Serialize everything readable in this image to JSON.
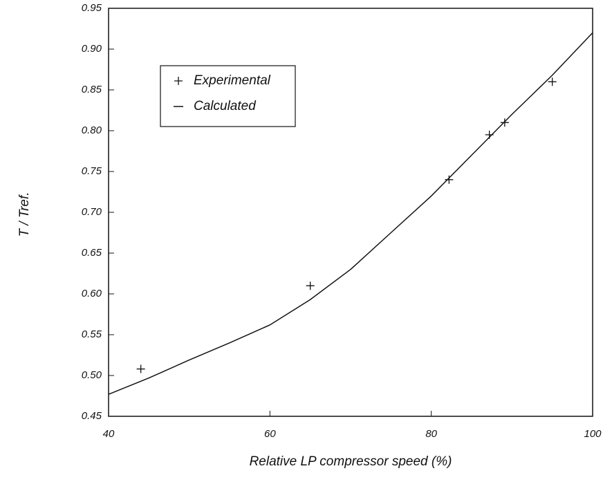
{
  "chart_data": {
    "type": "line",
    "xlabel": "Relative LP compressor speed (%)",
    "ylabel": "T / Tref.",
    "xlim": [
      40,
      100
    ],
    "xticks": [
      40,
      60,
      80,
      100
    ],
    "ylim": [
      0.45,
      0.95
    ],
    "yticks": [
      0.45,
      {
        "value": 0.5,
        "label": "0.50"
      },
      0.55,
      {
        "value": 0.6,
        "label": "0.60"
      },
      0.65,
      {
        "value": 0.7,
        "label": "0.70"
      },
      0.75,
      {
        "value": 0.8,
        "label": "0.80"
      },
      0.85,
      {
        "value": 0.9,
        "label": "0.90"
      },
      0.95
    ],
    "grid": false,
    "legend": "upper left",
    "series": [
      {
        "name": "Experimental",
        "type": "scatter",
        "marker": "+",
        "color": "#111111",
        "x": [
          44,
          65,
          82.2,
          87.2,
          89.1,
          95
        ],
        "values": [
          0.508,
          0.61,
          0.74,
          0.795,
          0.81,
          0.86
        ]
      },
      {
        "name": "Calculated",
        "type": "line",
        "color": "#111111",
        "x": [
          40,
          45,
          50,
          55,
          60,
          65,
          70,
          75,
          80,
          85,
          90,
          95,
          100
        ],
        "values": [
          0.477,
          0.497,
          0.519,
          0.54,
          0.562,
          0.593,
          0.63,
          0.675,
          0.72,
          0.77,
          0.82,
          0.868,
          0.92
        ]
      }
    ]
  }
}
